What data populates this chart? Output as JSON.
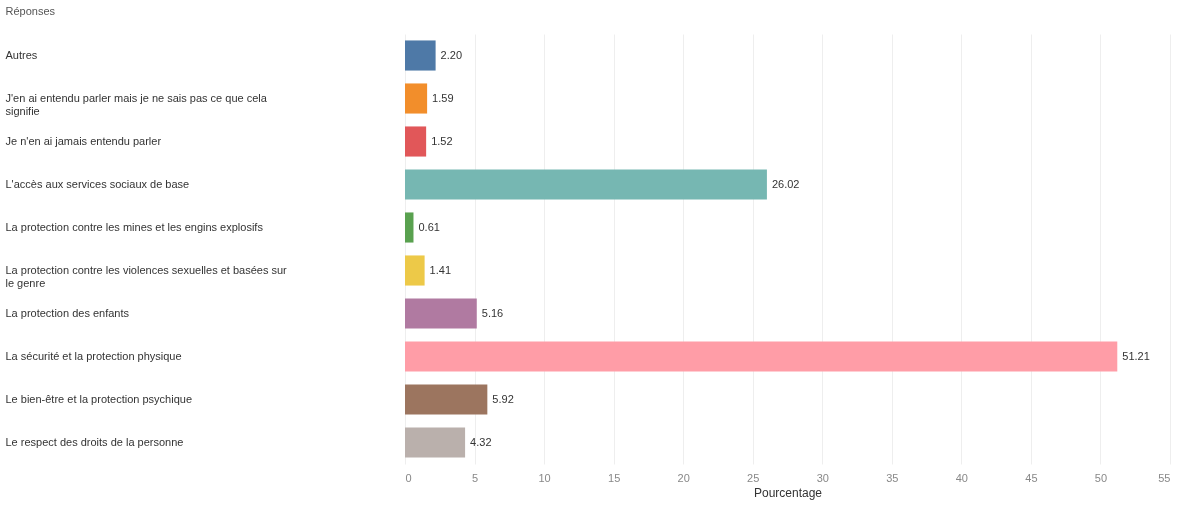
{
  "chart_data": {
    "type": "bar",
    "orientation": "horizontal",
    "ylabel": "Réponses",
    "xlabel": "Pourcentage",
    "categories": [
      "Autres",
      "J'en ai entendu parler mais je ne sais pas ce que cela signifie",
      "Je n'en ai jamais entendu parler",
      "L'accès aux services sociaux de base",
      "La protection contre les mines et les engins explosifs",
      "La protection contre les violences sexuelles et basées sur le genre",
      "La protection des enfants",
      "La sécurité et la protection physique",
      "Le bien-être et la protection psychique",
      "Le respect des droits de la personne"
    ],
    "values": [
      2.2,
      1.59,
      1.52,
      26.02,
      0.61,
      1.41,
      5.16,
      51.21,
      5.92,
      4.32
    ],
    "value_labels": [
      "2.20",
      "1.59",
      "1.52",
      "26.02",
      "0.61",
      "1.41",
      "5.16",
      "51.21",
      "5.92",
      "4.32"
    ],
    "colors": [
      "#4e79a7",
      "#f28e2b",
      "#e15759",
      "#76b7b2",
      "#59a14f",
      "#edc948",
      "#b07aa1",
      "#ff9da7",
      "#9c755f",
      "#bab0ac"
    ],
    "xlim": [
      0,
      55
    ],
    "xticks": [
      0,
      5,
      10,
      15,
      20,
      25,
      30,
      35,
      40,
      45,
      50,
      55
    ],
    "grid": "x"
  }
}
